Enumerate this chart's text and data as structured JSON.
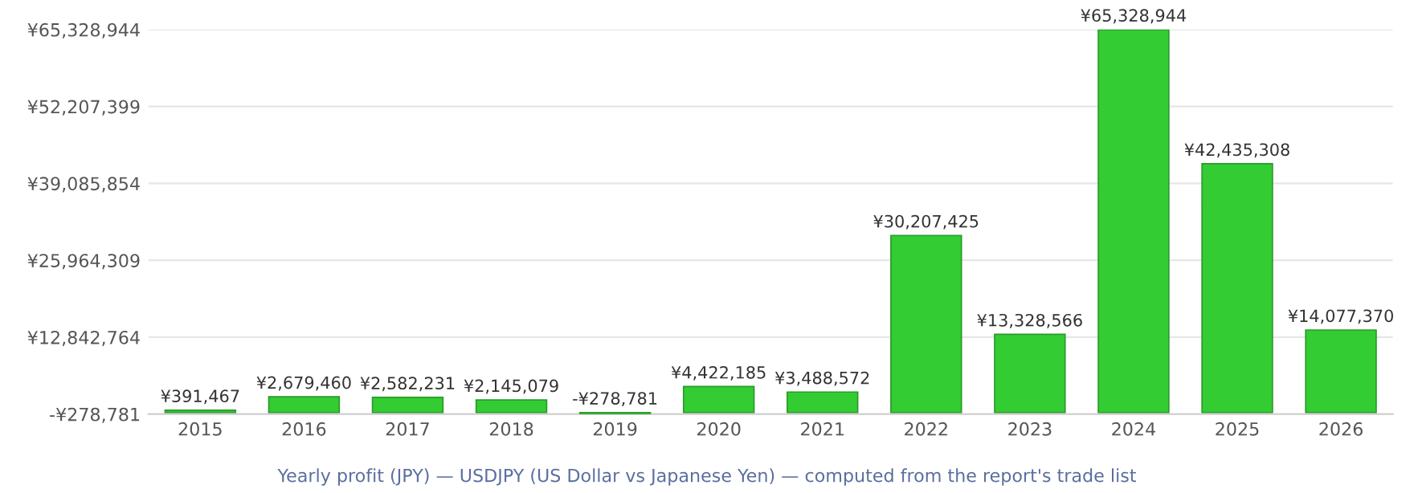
{
  "chart_data": {
    "type": "bar",
    "categories": [
      "2015",
      "2016",
      "2017",
      "2018",
      "2019",
      "2020",
      "2021",
      "2022",
      "2023",
      "2024",
      "2025",
      "2026"
    ],
    "values": [
      391467,
      2679460,
      2582231,
      2145079,
      -278781,
      4422185,
      3488572,
      30207425,
      13328566,
      65328944,
      42435308,
      14077370
    ],
    "value_labels": [
      "¥391,467",
      "¥2,679,460",
      "¥2,582,231",
      "¥2,145,079",
      "-¥278,781",
      "¥4,422,185",
      "¥3,488,572",
      "¥30,207,425",
      "¥13,328,566",
      "¥65,328,944",
      "¥42,435,308",
      "¥14,077,370"
    ],
    "color": "#33cc33",
    "ylim": [
      -278781,
      65328944
    ],
    "yticks": [
      {
        "value": -278781,
        "label": "-¥278,781"
      },
      {
        "value": 12842764,
        "label": "¥12,842,764"
      },
      {
        "value": 25964309,
        "label": "¥25,964,309"
      },
      {
        "value": 39085854,
        "label": "¥39,085,854"
      },
      {
        "value": 52207399,
        "label": "¥52,207,399"
      },
      {
        "value": 65328944,
        "label": "¥65,328,944"
      }
    ],
    "grid": "y",
    "annotations": [
      "Yearly profit (JPY) — USDJPY (US Dollar vs Japanese Yen) — computed from the report's trade list"
    ]
  }
}
